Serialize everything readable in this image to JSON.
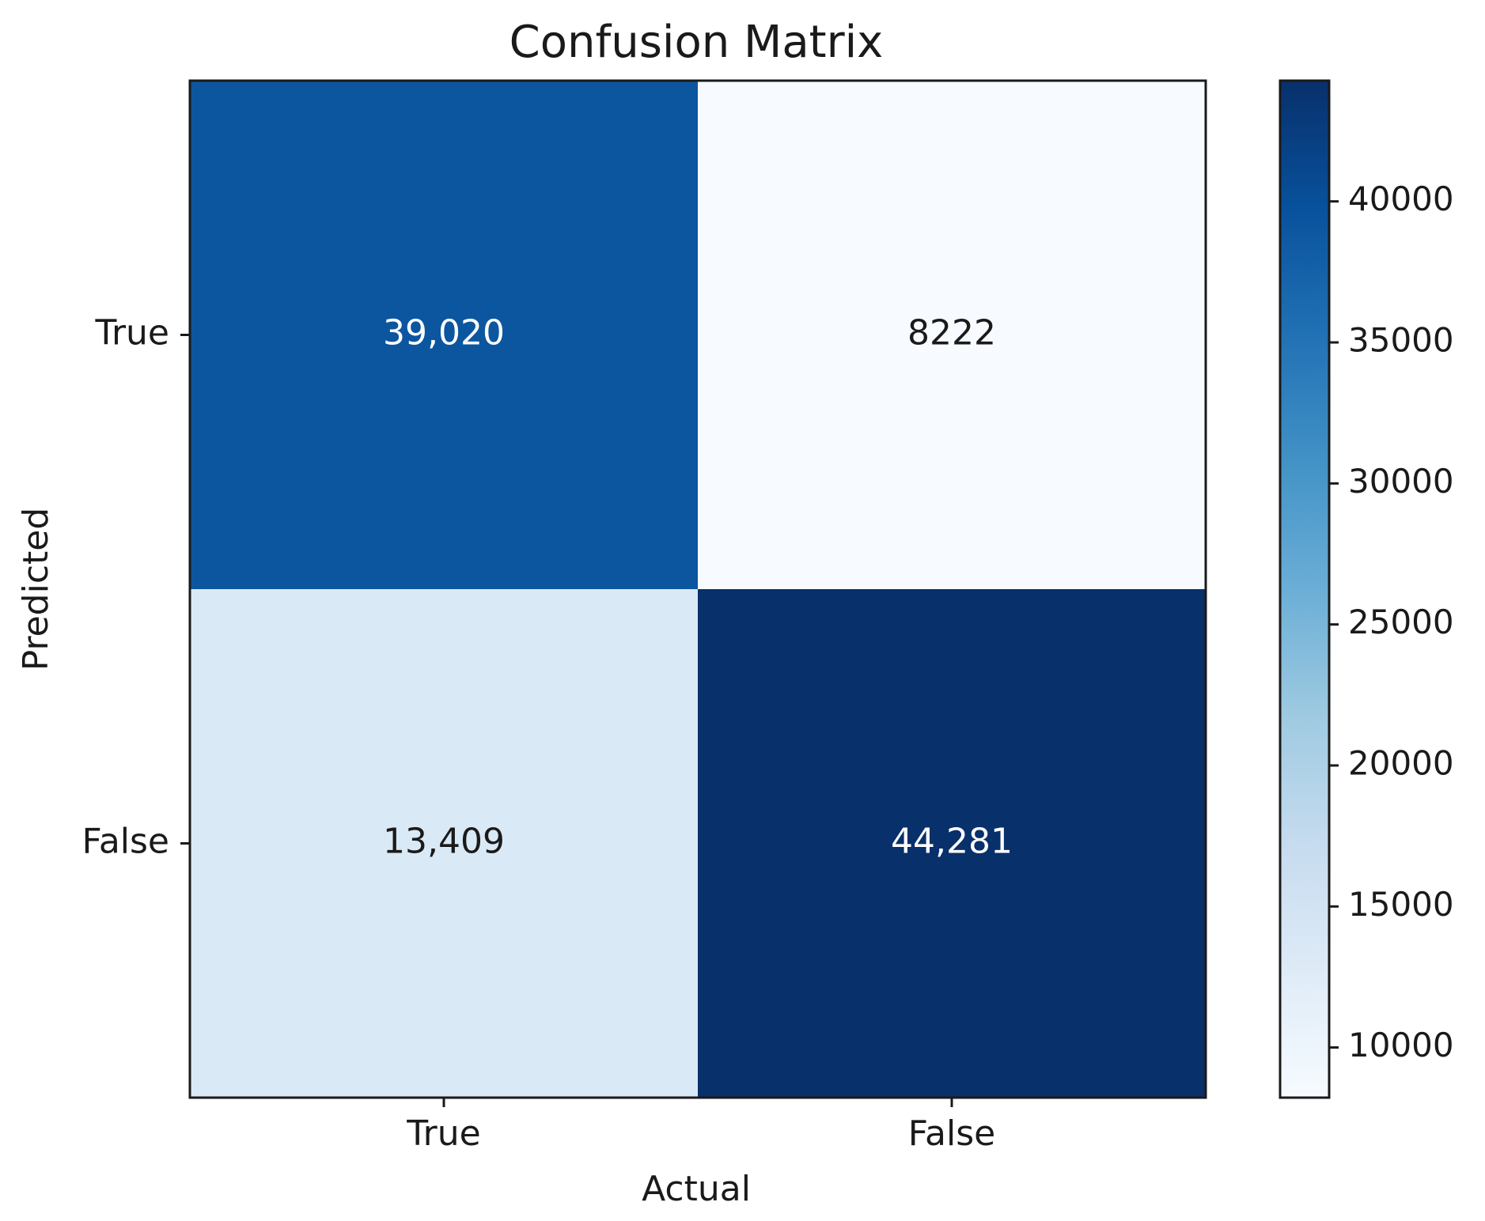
{
  "chart_data": {
    "type": "heatmap",
    "title": "Confusion Matrix",
    "xlabel": "Actual",
    "ylabel": "Predicted",
    "x_categories": [
      "True",
      "False"
    ],
    "y_categories": [
      "True",
      "False"
    ],
    "matrix": [
      [
        39020,
        8222
      ],
      [
        13409,
        44281
      ]
    ],
    "value_labels": [
      [
        "39,020",
        "8222"
      ],
      [
        "13,409",
        "44,281"
      ]
    ],
    "colormap": "Blues",
    "colorbar": {
      "range": [
        8222,
        44281
      ],
      "ticks": [
        10000,
        15000,
        20000,
        25000,
        30000,
        35000,
        40000
      ]
    }
  }
}
